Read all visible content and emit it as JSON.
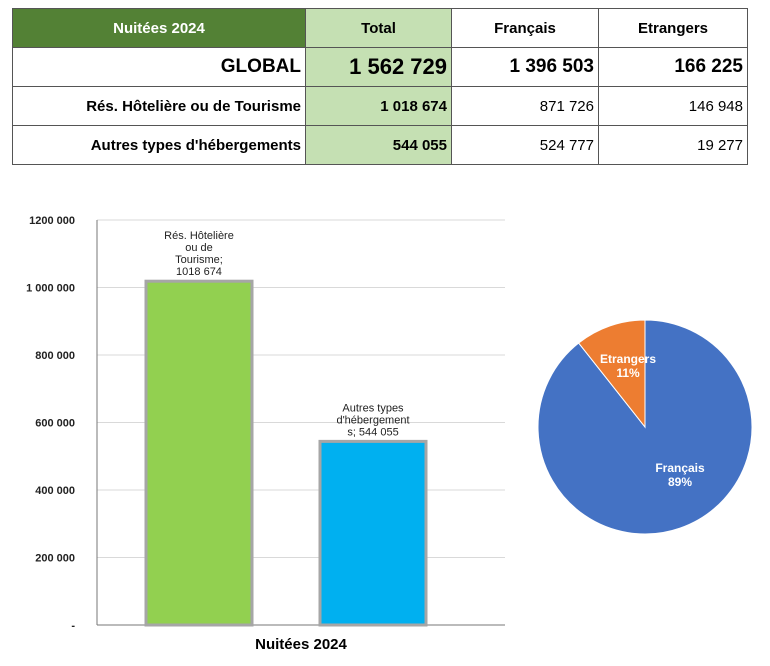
{
  "table": {
    "corner": "Nuitées 2024",
    "columns": [
      "Total",
      "Français",
      "Etrangers"
    ],
    "rows": [
      {
        "label": "GLOBAL",
        "total": "1 562 729",
        "francais": "1 396 503",
        "etrangers": "166 225"
      },
      {
        "label": "Rés. Hôtelière ou de Tourisme",
        "total": "1 018 674",
        "francais": "871 726",
        "etrangers": "146 948"
      },
      {
        "label": "Autres types d'hébergements",
        "total": "544 055",
        "francais": "524 777",
        "etrangers": "19 277"
      }
    ]
  },
  "chart_data": [
    {
      "type": "bar",
      "xlabel": "Nuitées 2024",
      "ylabel": "",
      "ylim": [
        0,
        1200000
      ],
      "yticks": [
        0,
        200000,
        400000,
        600000,
        800000,
        1000000,
        1200000
      ],
      "ytick_labels": [
        "-",
        "200 000",
        "400 000",
        "600 000",
        "800 000",
        "1 000 000",
        "1200 000"
      ],
      "categories": [
        "Rés. Hôtelière ou de Tourisme",
        "Autres types d'hébergements"
      ],
      "values": [
        1018674,
        544055
      ],
      "colors": [
        "#92d050",
        "#00b0f0"
      ],
      "data_labels": [
        [
          "Rés. Hôtelière",
          "ou de",
          "Tourisme;",
          "1018 674"
        ],
        [
          "Autres types",
          "d'hébergement",
          "s;  544 055"
        ]
      ]
    },
    {
      "type": "pie",
      "categories": [
        "Français",
        "Etrangers"
      ],
      "values": [
        1396503,
        166225
      ],
      "percent_labels": [
        "89%",
        "11%"
      ],
      "colors": [
        "#4472c4",
        "#ed7d31"
      ]
    }
  ]
}
